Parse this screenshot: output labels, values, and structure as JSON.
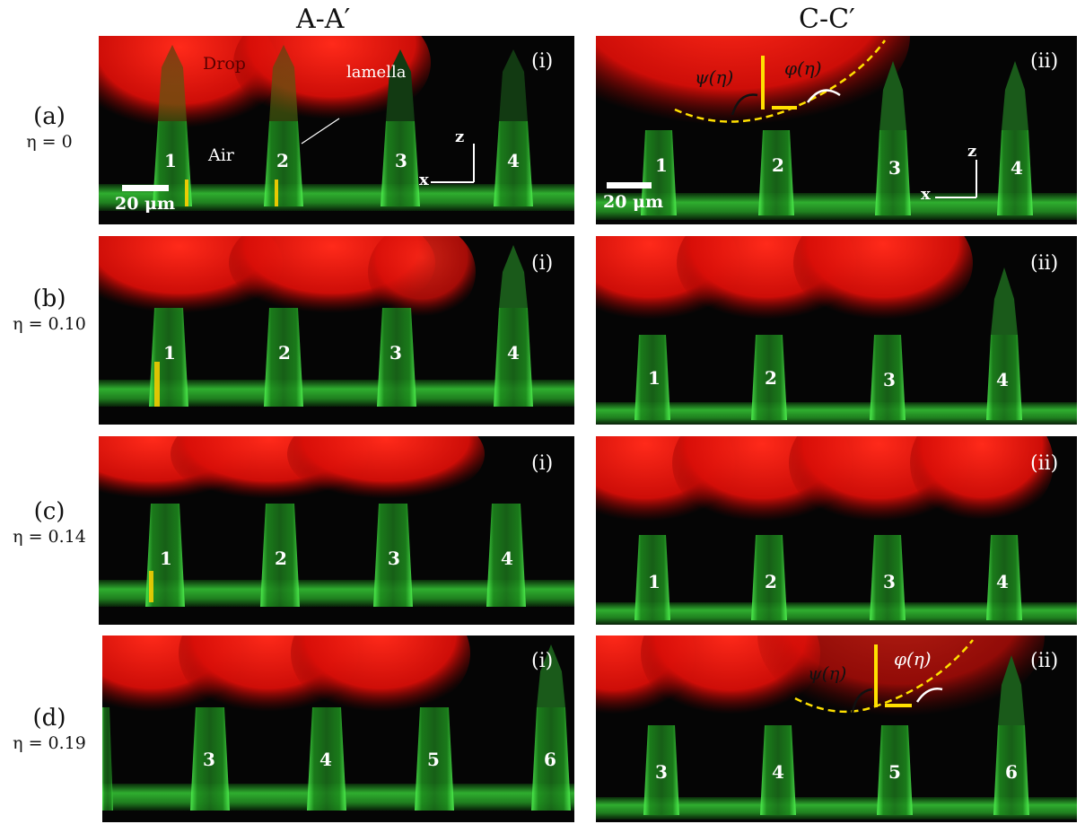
{
  "column_headers": [
    "A-A′",
    "C-C′"
  ],
  "rows": [
    {
      "letter": "(a)",
      "eta": "η = 0"
    },
    {
      "letter": "(b)",
      "eta": "η = 0.10"
    },
    {
      "letter": "(c)",
      "eta": "η = 0.14"
    },
    {
      "letter": "(d)",
      "eta": "η = 0.19"
    }
  ],
  "panel_tags": {
    "left": "(i)",
    "right": "(ii)"
  },
  "pillar_numbers": {
    "a_left": [
      "1",
      "2",
      "3",
      "4"
    ],
    "a_right": [
      "1",
      "2",
      "3",
      "4"
    ],
    "b_left": [
      "1",
      "2",
      "3",
      "4"
    ],
    "b_right": [
      "1",
      "2",
      "3",
      "4"
    ],
    "c_left": [
      "1",
      "2",
      "3",
      "4"
    ],
    "c_right": [
      "1",
      "2",
      "3",
      "4"
    ],
    "d_left": [
      "3",
      "4",
      "5",
      "6"
    ],
    "d_right": [
      "3",
      "4",
      "5",
      "6"
    ]
  },
  "annotations": {
    "drop": "Drop",
    "air": "Air",
    "lamella": "lamella",
    "scale_bar": "20 μm",
    "axis_z": "z",
    "axis_x": "x",
    "psi": "ψ(η)",
    "phi": "φ(η)"
  },
  "colors": {
    "drop": "#e01010",
    "pillar": "#33dd33",
    "highlight": "#ffe000",
    "background": "#050505"
  }
}
